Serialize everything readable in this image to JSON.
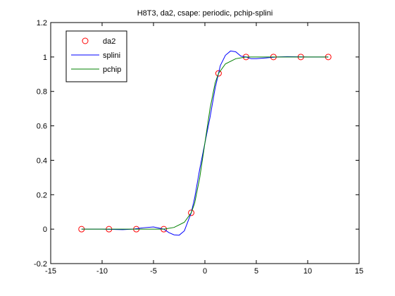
{
  "chart_data": {
    "type": "line",
    "title": "H8T3, da2, csape: periodic, pchip-splini",
    "xlim": [
      -15,
      15
    ],
    "ylim": [
      -0.2,
      1.2
    ],
    "xticks": [
      -15,
      -10,
      -5,
      0,
      5,
      10,
      15
    ],
    "yticks": [
      -0.2,
      0,
      0.2,
      0.4,
      0.6,
      0.8,
      1,
      1.2
    ],
    "legend": "upper-left",
    "series": [
      {
        "name": "da2",
        "color": "#ff0000",
        "marker": "circle",
        "x": [
          -12,
          -9.33,
          -6.67,
          -4,
          -1.33,
          1.33,
          4,
          6.67,
          9.33,
          12
        ],
        "values": [
          0,
          0,
          0,
          0,
          0.095,
          0.905,
          1,
          1,
          1,
          1
        ]
      },
      {
        "name": "splini",
        "color": "#0000ff",
        "x": [
          -12,
          -10,
          -8,
          -7,
          -6,
          -5,
          -4,
          -3.5,
          -3,
          -2.5,
          -2,
          -1.33,
          -1,
          -0.5,
          0,
          0.5,
          1,
          1.33,
          1.5,
          2,
          2.5,
          3,
          3.5,
          4,
          4.5,
          5,
          6,
          7,
          8,
          10,
          12
        ],
        "values": [
          0,
          0,
          -0.003,
          0,
          0.008,
          0.013,
          0,
          -0.02,
          -0.033,
          -0.035,
          -0.01,
          0.095,
          0.18,
          0.35,
          0.5,
          0.65,
          0.82,
          0.905,
          0.95,
          1.01,
          1.035,
          1.03,
          1.005,
          1,
          0.99,
          0.99,
          0.995,
          1,
          1.002,
          1,
          1
        ]
      },
      {
        "name": "pchip",
        "color": "#008000",
        "x": [
          -12,
          -4,
          -3,
          -2,
          -1.33,
          -1,
          -0.5,
          0,
          0.5,
          1,
          1.33,
          2,
          3,
          4,
          12
        ],
        "values": [
          0,
          0,
          0.01,
          0.04,
          0.095,
          0.15,
          0.3,
          0.5,
          0.7,
          0.85,
          0.905,
          0.96,
          0.99,
          1,
          1
        ]
      }
    ]
  }
}
